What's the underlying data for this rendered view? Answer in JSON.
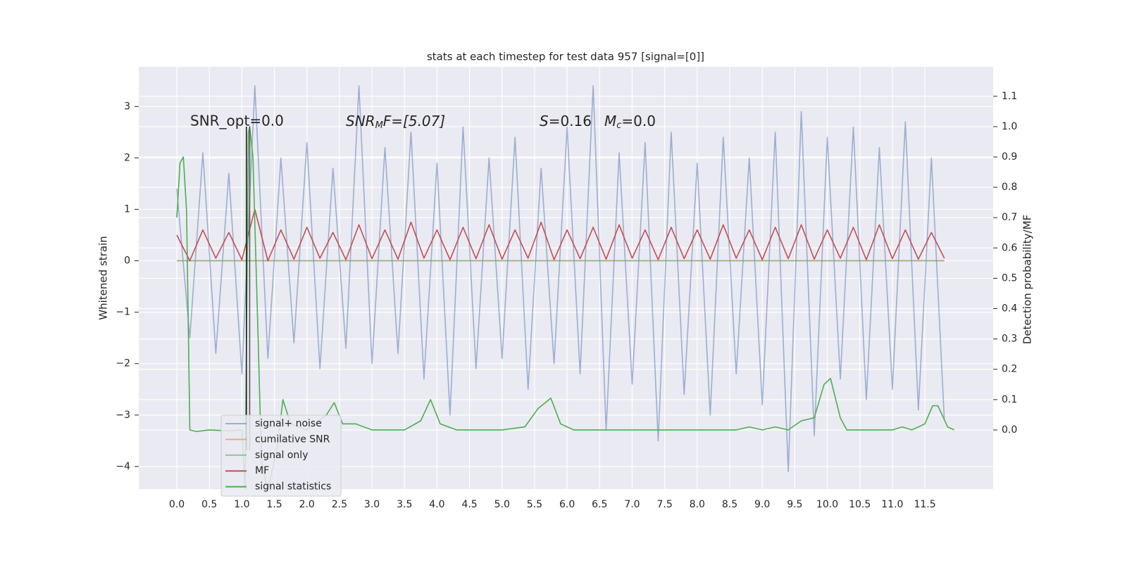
{
  "chart_data": {
    "type": "line",
    "title": "stats at each timestep for test data 957 [signal=[0]]",
    "ylabel": "Whitened strain",
    "y2label": "Detection probability/MF",
    "annotations": {
      "snr_opt": "SNR_opt=0.0",
      "snr_mf": {
        "main": "SNR",
        "sub": "M",
        "rest": "F=[5.07]"
      },
      "s": {
        "main": "S",
        "rest": "=0.16"
      },
      "mc": {
        "main": "M",
        "sub": "c",
        "rest": "=0.0"
      }
    },
    "vlines": [
      1.07,
      1.12
    ],
    "xlim": [
      -0.585,
      12.55
    ],
    "ylim": [
      -4.44,
      3.77
    ],
    "y2lim": [
      -0.195,
      1.197
    ],
    "xticks": [
      {
        "value": 0,
        "label": "0.0"
      },
      0.5,
      {
        "value": 1,
        "label": "1.0"
      },
      1.5,
      {
        "value": 2,
        "label": "2.0"
      },
      2.5,
      {
        "value": 3,
        "label": "3.0"
      },
      3.5,
      {
        "value": 4,
        "label": "4.0"
      },
      4.5,
      {
        "value": 5,
        "label": "5.0"
      },
      5.5,
      {
        "value": 6,
        "label": "6.0"
      },
      6.5,
      {
        "value": 7,
        "label": "7.0"
      },
      7.5,
      {
        "value": 8,
        "label": "8.0"
      },
      8.5,
      {
        "value": 9,
        "label": "9.0"
      },
      9.5,
      {
        "value": 10,
        "label": "10.0"
      },
      10.5,
      {
        "value": 11,
        "label": "11.0"
      },
      11.5
    ],
    "yticks": [
      {
        "value": -4,
        "label": "−4"
      },
      {
        "value": -3,
        "label": "−3"
      },
      {
        "value": -2,
        "label": "−2"
      },
      {
        "value": -1,
        "label": "−1"
      },
      0,
      1,
      2,
      3
    ],
    "y2ticks": [
      {
        "value": 0,
        "label": "0.0"
      },
      0.1,
      0.2,
      0.3,
      0.4,
      0.5,
      0.6,
      0.7,
      0.8,
      0.9,
      {
        "value": 1,
        "label": "1.0"
      },
      1.1
    ],
    "grid": true,
    "legend": "lower left",
    "series": [
      {
        "name": "signal+ noise",
        "color": "#4c72b0",
        "opacity": 0.5,
        "x": [
          0,
          0.2,
          0.4,
          0.6,
          0.8,
          1,
          1.2,
          1.4,
          1.6,
          1.8,
          2,
          2.2,
          2.4,
          2.6,
          2.8,
          3,
          3.2,
          3.4,
          3.6,
          3.8,
          4,
          4.2,
          4.4,
          4.6,
          4.8,
          5,
          5.2,
          5.4,
          5.6,
          5.8,
          6,
          6.2,
          6.4,
          6.6,
          6.8,
          7,
          7.2,
          7.4,
          7.6,
          7.8,
          8,
          8.2,
          8.4,
          8.6,
          8.8,
          9,
          9.2,
          9.4,
          9.6,
          9.8,
          10,
          10.2,
          10.4,
          10.6,
          10.8,
          11,
          11.2,
          11.4,
          11.6,
          11.8
        ],
        "values": [
          1.4,
          -1.5,
          2.1,
          -1.8,
          1.7,
          -2.2,
          3.4,
          -1.9,
          2.0,
          -1.6,
          2.3,
          -2.1,
          1.8,
          -1.7,
          3.4,
          -2.0,
          2.2,
          -1.8,
          2.5,
          -2.3,
          1.9,
          -3.0,
          2.6,
          -2.1,
          2.0,
          -1.9,
          2.4,
          -2.5,
          1.8,
          -2.0,
          2.6,
          -2.2,
          3.4,
          -3.3,
          2.1,
          -2.4,
          2.3,
          -3.5,
          2.5,
          -2.6,
          1.9,
          -3.0,
          2.4,
          -2.2,
          2.0,
          -2.8,
          2.5,
          -4.1,
          2.9,
          -3.4,
          2.4,
          -2.3,
          2.6,
          -2.7,
          2.2,
          -2.5,
          2.7,
          -2.9,
          2.0,
          -3.1
        ]
      },
      {
        "name": "cumilative SNR",
        "color": "#dd8452",
        "opacity": 0.6,
        "x": [
          0,
          11.8
        ],
        "values": [
          0,
          0
        ]
      },
      {
        "name": "signal only",
        "color": "#55a868",
        "opacity": 0.6,
        "x": [
          0,
          11.8
        ],
        "values": [
          0,
          0
        ]
      },
      {
        "name": "MF",
        "color": "#c44e52",
        "opacity": 1,
        "x": [
          0,
          0.2,
          0.4,
          0.6,
          0.8,
          1,
          1.2,
          1.4,
          1.6,
          1.8,
          2,
          2.2,
          2.4,
          2.6,
          2.8,
          3,
          3.2,
          3.4,
          3.6,
          3.8,
          4,
          4.2,
          4.4,
          4.6,
          4.8,
          5,
          5.2,
          5.4,
          5.6,
          5.8,
          6,
          6.2,
          6.4,
          6.6,
          6.8,
          7,
          7.2,
          7.4,
          7.6,
          7.8,
          8,
          8.2,
          8.4,
          8.6,
          8.8,
          9,
          9.2,
          9.4,
          9.6,
          9.8,
          10,
          10.2,
          10.4,
          10.6,
          10.8,
          11,
          11.2,
          11.4,
          11.6,
          11.8
        ],
        "values": [
          0.5,
          0.0,
          0.6,
          0.05,
          0.55,
          0.02,
          1.0,
          0.0,
          0.6,
          0.03,
          0.65,
          0.05,
          0.55,
          0.02,
          0.7,
          0.04,
          0.6,
          0.03,
          0.75,
          0.05,
          0.6,
          0.02,
          0.65,
          0.04,
          0.7,
          0.03,
          0.6,
          0.05,
          0.75,
          0.02,
          0.6,
          0.04,
          0.65,
          0.03,
          0.7,
          0.05,
          0.6,
          0.02,
          0.65,
          0.04,
          0.6,
          0.03,
          0.7,
          0.05,
          0.6,
          0.02,
          0.65,
          0.04,
          0.7,
          0.03,
          0.6,
          0.05,
          0.65,
          0.02,
          0.7,
          0.04,
          0.6,
          0.03,
          0.55,
          0.05
        ]
      },
      {
        "name": "signal statistics",
        "color": "#4caf50",
        "opacity": 1,
        "axis": "y2",
        "x": [
          0,
          0.05,
          0.1,
          0.15,
          0.2,
          0.3,
          0.5,
          0.8,
          1.0,
          1.05,
          1.1,
          1.12,
          1.17,
          1.25,
          1.3,
          1.4,
          1.55,
          1.63,
          1.75,
          2.0,
          2.3,
          2.42,
          2.55,
          2.75,
          3.0,
          3.5,
          3.75,
          3.9,
          4.05,
          4.3,
          5.0,
          5.35,
          5.55,
          5.75,
          5.9,
          6.1,
          7.0,
          8.0,
          8.6,
          8.8,
          9.0,
          9.2,
          9.4,
          9.6,
          9.8,
          9.95,
          10.05,
          10.2,
          10.3,
          10.8,
          11.0,
          11.15,
          11.3,
          11.5,
          11.62,
          11.7,
          11.85,
          11.95
        ],
        "values": [
          0.7,
          0.88,
          0.9,
          0.72,
          0.0,
          -0.005,
          0.0,
          -0.003,
          0.0,
          -0.2,
          0.98,
          1.0,
          0.9,
          0.3,
          -0.1,
          -0.2,
          -0.05,
          0.1,
          0.02,
          0.0,
          0.05,
          0.09,
          0.02,
          0.02,
          0.0,
          0.0,
          0.03,
          0.1,
          0.02,
          0.0,
          0.0,
          0.01,
          0.07,
          0.105,
          0.02,
          0.0,
          0.0,
          0.0,
          0.0,
          0.01,
          0.0,
          0.01,
          0.0,
          0.03,
          0.04,
          0.15,
          0.17,
          0.04,
          0.0,
          0.0,
          0.0,
          0.01,
          0.0,
          0.02,
          0.08,
          0.08,
          0.01,
          0.0
        ]
      }
    ]
  }
}
